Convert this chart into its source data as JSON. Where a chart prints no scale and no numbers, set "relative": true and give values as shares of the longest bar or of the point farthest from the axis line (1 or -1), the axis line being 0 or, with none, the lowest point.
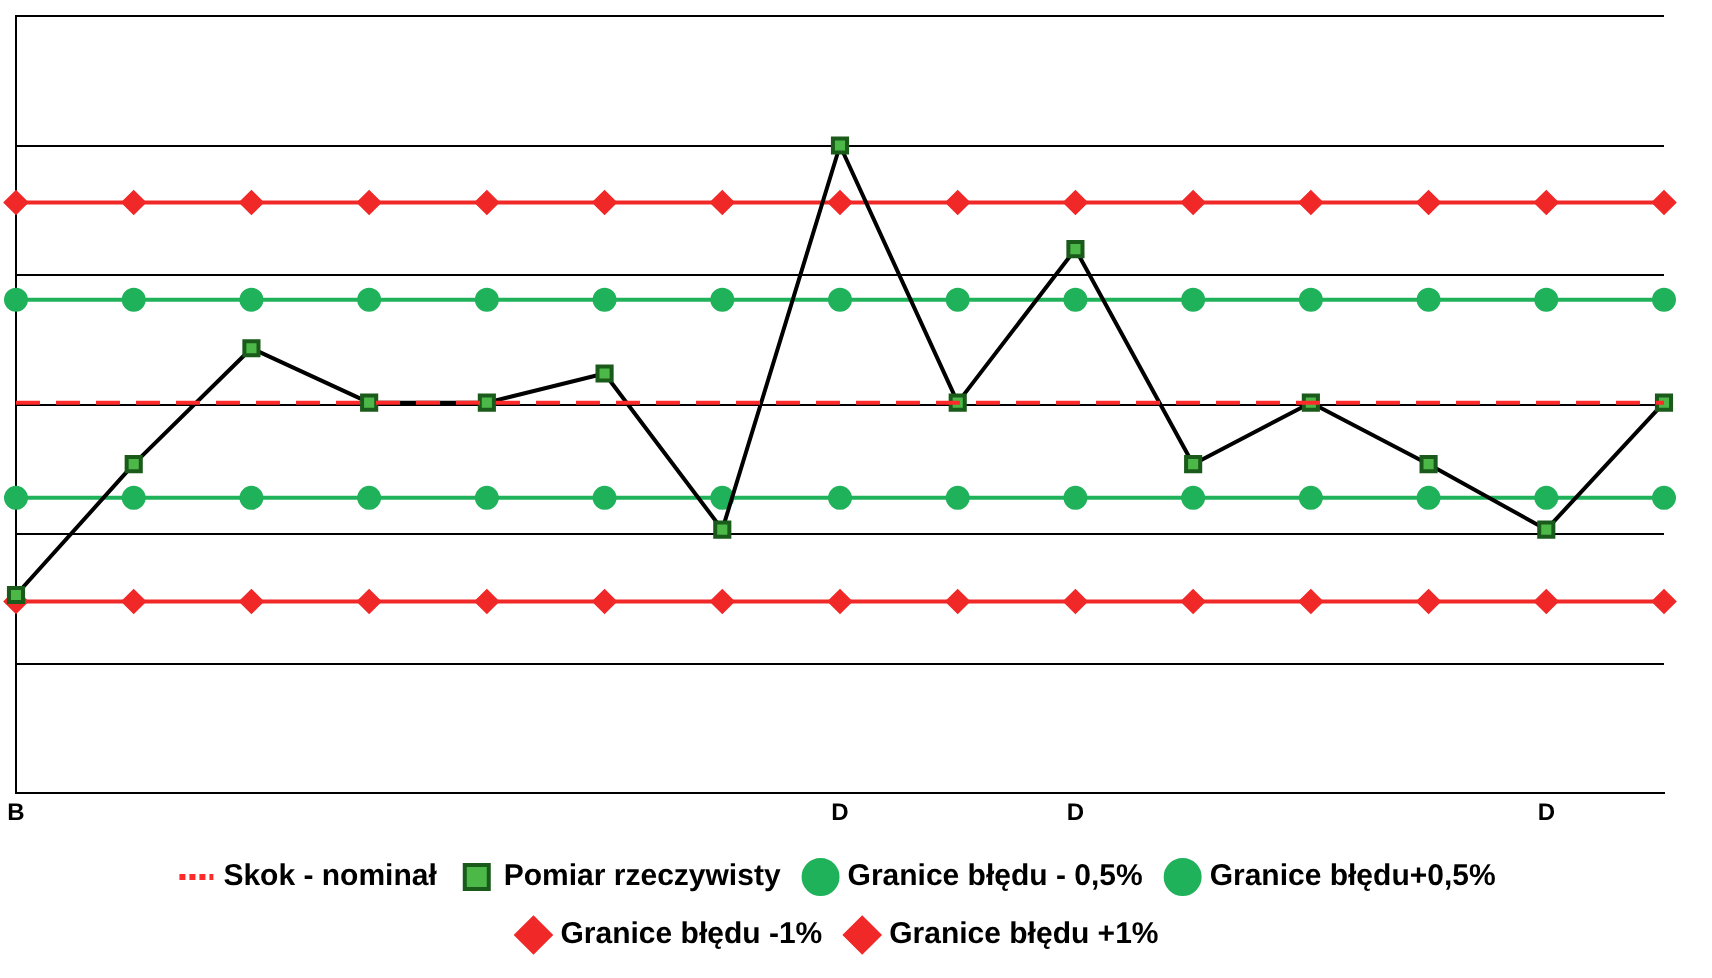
{
  "chart_data": {
    "type": "line",
    "relative": true,
    "grid": "y",
    "legend": "bottom",
    "categories": [
      "B",
      null,
      null,
      null,
      null,
      null,
      null,
      "D",
      null,
      "D",
      null,
      null,
      null,
      "D",
      null
    ],
    "series": [
      {
        "name": "Skok - nominał",
        "color": "#ff2a2a",
        "line_style": "dashed",
        "marker": "none",
        "values": [
          0.603,
          0.603,
          0.603,
          0.603,
          0.603,
          0.603,
          0.603,
          0.603,
          0.603,
          0.603,
          0.603,
          0.603,
          0.603,
          0.603,
          0.603
        ]
      },
      {
        "name": "Pomiar rzeczywisty",
        "color": "#000000",
        "marker": "square",
        "line_style": "solid",
        "colors": [
          "#4cb848",
          "#4cb848",
          "#4cb848",
          "#4cb848",
          "#4cb848",
          "#4cb848",
          "#4cb848",
          "#4cb848",
          "#4cb848",
          "#4cb848",
          "#4cb848",
          "#4cb848",
          "#4cb848",
          "#4cb848",
          "#4cb848"
        ],
        "values": [
          0.306,
          0.508,
          0.687,
          0.603,
          0.603,
          0.648,
          0.407,
          1,
          0.603,
          0.84,
          0.508,
          0.603,
          0.508,
          0.407,
          0.603
        ]
      },
      {
        "name": "Granice błędu - 0,5%",
        "color": "#1fb25a",
        "marker": "circle",
        "line_style": "solid",
        "values": [
          0.456,
          0.456,
          0.456,
          0.456,
          0.456,
          0.456,
          0.456,
          0.456,
          0.456,
          0.456,
          0.456,
          0.456,
          0.456,
          0.456,
          0.456
        ]
      },
      {
        "name": "Granice błędu+0,5%",
        "color": "#1fb25a",
        "marker": "circle",
        "line_style": "solid",
        "values": [
          0.762,
          0.762,
          0.762,
          0.762,
          0.762,
          0.762,
          0.762,
          0.762,
          0.762,
          0.762,
          0.762,
          0.762,
          0.762,
          0.762,
          0.762
        ]
      },
      {
        "name": "Granice błędu -1%",
        "color": "#f02828",
        "marker": "diamond",
        "line_style": "solid",
        "values": [
          0.296,
          0.296,
          0.296,
          0.296,
          0.296,
          0.296,
          0.296,
          0.296,
          0.296,
          0.296,
          0.296,
          0.296,
          0.296,
          0.296,
          0.296
        ]
      },
      {
        "name": "Granice błędu +1%",
        "color": "#f02828",
        "marker": "diamond",
        "line_style": "solid",
        "values": [
          0.912,
          0.912,
          0.912,
          0.912,
          0.912,
          0.912,
          0.912,
          0.912,
          0.912,
          0.912,
          0.912,
          0.912,
          0.912,
          0.912,
          0.912
        ]
      }
    ]
  }
}
